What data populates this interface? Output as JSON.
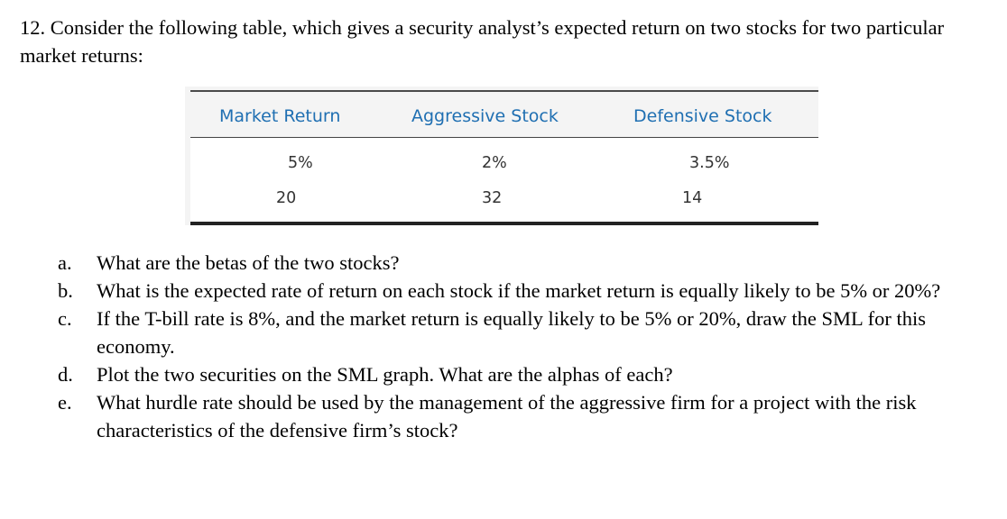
{
  "problem": {
    "intro": "12. Consider the following table, which gives a security analyst’s expected return on two stocks for two particular market returns:"
  },
  "table": {
    "headers": [
      "Market Return",
      "Aggressive Stock",
      "Defensive Stock"
    ],
    "rows": [
      [
        "5%",
        "2%",
        "3.5%"
      ],
      [
        "20",
        "32",
        "14"
      ]
    ],
    "header_color": "#1f6fb2"
  },
  "questions": [
    {
      "marker": "a.",
      "text": "What are the betas of the two stocks?"
    },
    {
      "marker": "b.",
      "text": "What is the expected rate of return on each stock if the market return is equally likely to be 5% or 20%?"
    },
    {
      "marker": "c.",
      "text": "If the T-bill rate is 8%, and the market return is equally likely to be 5% or 20%, draw the SML for this economy."
    },
    {
      "marker": "d.",
      "text": "Plot the two securities on the SML graph. What are the alphas of each?"
    },
    {
      "marker": "e.",
      "text": "What hurdle rate should be used by the management of the aggressive firm for a project with the risk characteristics of the defensive firm’s stock?"
    }
  ]
}
